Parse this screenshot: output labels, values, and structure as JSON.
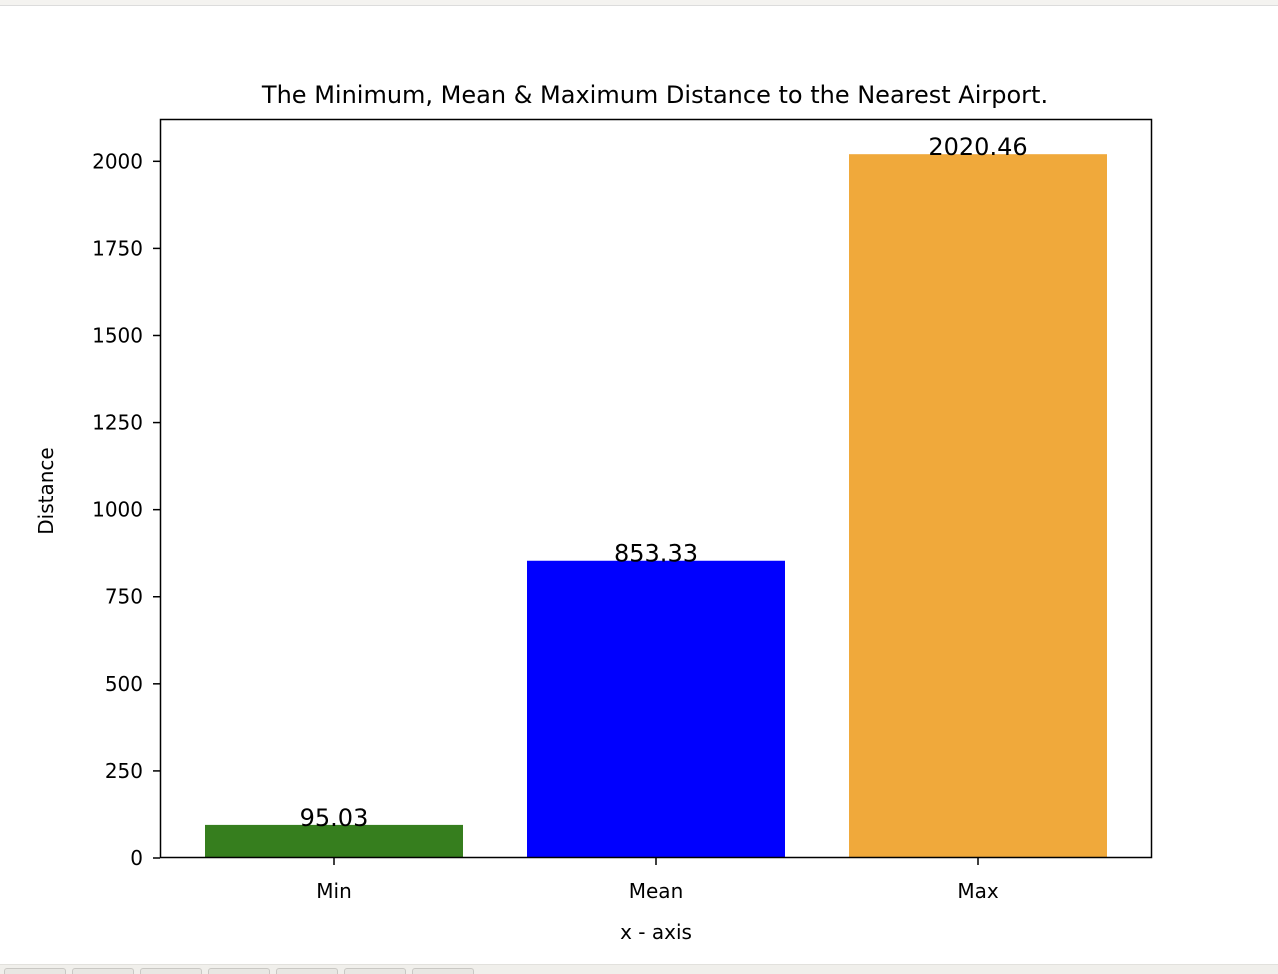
{
  "colors": {
    "min_bar": "#367e1e",
    "mean_bar": "#0000ff",
    "max_bar": "#f0a93b",
    "axis": "#000000",
    "background": "#ffffff"
  },
  "chart_data": {
    "type": "bar",
    "title": "The Minimum, Mean & Maximum Distance to the Nearest Airport.",
    "xlabel": "x - axis",
    "ylabel": "Distance",
    "categories": [
      "Min",
      "Mean",
      "Max"
    ],
    "values": [
      95.03,
      853.33,
      2020.46
    ],
    "value_labels": [
      "95.03",
      "853.33",
      "2020.46"
    ],
    "ylim": [
      0,
      2121.48
    ],
    "yticks": [
      0,
      250,
      500,
      750,
      1000,
      1250,
      1500,
      1750,
      2000
    ],
    "ytick_labels": [
      "0",
      "250",
      "500",
      "750",
      "1000",
      "1250",
      "1500",
      "1750",
      "2000"
    ],
    "grid": false,
    "legend": "none"
  },
  "toolbar": {
    "buttons": [
      "",
      "",
      "",
      "",
      "",
      "",
      ""
    ]
  }
}
